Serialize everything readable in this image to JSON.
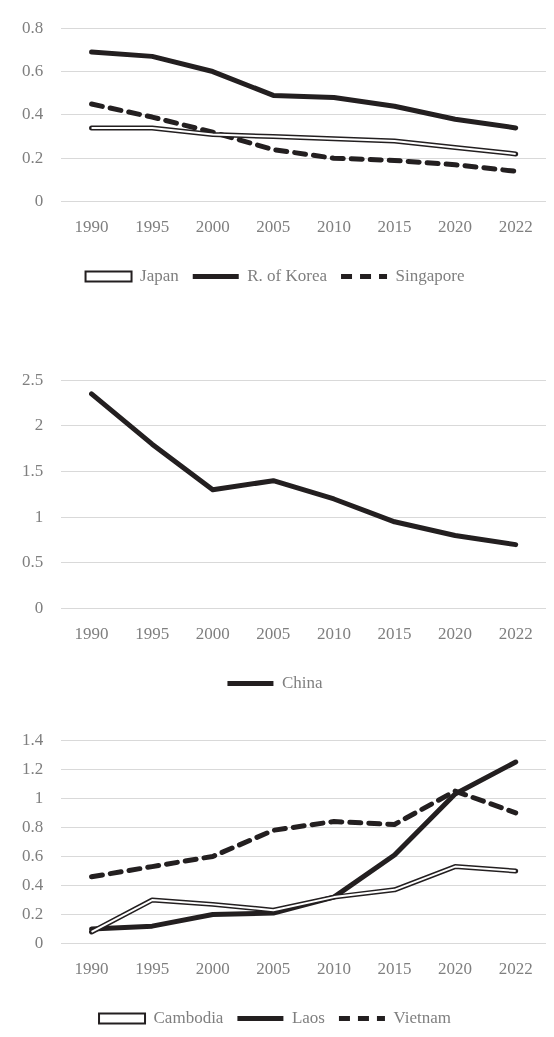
{
  "chart_data": [
    {
      "type": "line",
      "categories": [
        "1990",
        "1995",
        "2000",
        "2005",
        "2010",
        "2015",
        "2020",
        "2022"
      ],
      "ylim": [
        0,
        0.8
      ],
      "yticks": [
        0,
        0.2,
        0.4,
        0.6,
        0.8
      ],
      "grid": "y",
      "legend": "bottom",
      "marker": "none",
      "series": [
        {
          "name": "Japan",
          "color": "#231f20",
          "line_style": "solid",
          "values": [
            0.34,
            0.34,
            0.31,
            0.3,
            0.29,
            0.28,
            0.25,
            0.22
          ]
        },
        {
          "name": "R. of Korea",
          "color": "#231f20",
          "line_style": "solid",
          "values": [
            0.69,
            0.67,
            0.6,
            0.49,
            0.48,
            0.44,
            0.38,
            0.34
          ]
        },
        {
          "name": "Singapore",
          "color": "#231f20",
          "line_style": "dashed",
          "values": [
            0.45,
            0.39,
            0.32,
            0.24,
            0.2,
            0.19,
            0.17,
            0.14
          ]
        }
      ]
    },
    {
      "type": "line",
      "categories": [
        "1990",
        "1995",
        "2000",
        "2005",
        "2010",
        "2015",
        "2020",
        "2022"
      ],
      "ylim": [
        0,
        2.5
      ],
      "yticks": [
        0,
        0.5,
        1,
        1.5,
        2,
        2.5
      ],
      "grid": "y",
      "legend": "bottom",
      "marker": "none",
      "series": [
        {
          "name": "China",
          "color": "#231f20",
          "line_style": "solid",
          "values": [
            2.35,
            1.8,
            1.3,
            1.4,
            1.2,
            0.95,
            0.8,
            0.7
          ]
        }
      ]
    },
    {
      "type": "line",
      "categories": [
        "1990",
        "1995",
        "2000",
        "2005",
        "2010",
        "2015",
        "2020",
        "2022"
      ],
      "ylim": [
        0,
        1.4
      ],
      "yticks": [
        0,
        0.2,
        0.4,
        0.6,
        0.8,
        1,
        1.2,
        1.4
      ],
      "grid": "y",
      "legend": "bottom",
      "marker": "none",
      "series": [
        {
          "name": "Cambodia",
          "color": "#231f20",
          "line_style": "solid",
          "values": [
            0.08,
            0.3,
            0.27,
            0.23,
            0.32,
            0.37,
            0.53,
            0.5
          ]
        },
        {
          "name": "Laos",
          "color": "#231f20",
          "line_style": "solid",
          "values": [
            0.1,
            0.12,
            0.2,
            0.21,
            0.32,
            0.61,
            1.03,
            1.25
          ]
        },
        {
          "name": "Vietnam",
          "color": "#231f20",
          "line_style": "dashed",
          "values": [
            0.46,
            0.53,
            0.6,
            0.78,
            0.84,
            0.82,
            1.05,
            0.9
          ]
        }
      ]
    }
  ]
}
